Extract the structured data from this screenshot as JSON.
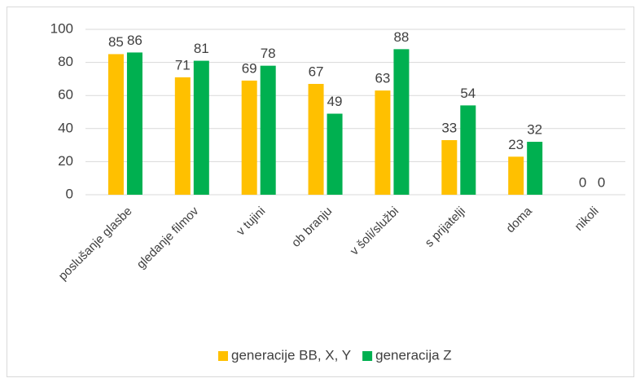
{
  "chart_data": {
    "type": "bar",
    "categories": [
      "poslušanje glasbe",
      "gledanje filmov",
      "v tujini",
      "ob branju",
      "v šoli/službi",
      "s prijatelji",
      "doma",
      "nikoli"
    ],
    "series": [
      {
        "name": "generacije BB, X, Y",
        "color": "#ffc000",
        "values": [
          85,
          71,
          69,
          67,
          63,
          33,
          23,
          0
        ]
      },
      {
        "name": "generacija Z",
        "color": "#00b050",
        "values": [
          86,
          81,
          78,
          49,
          88,
          54,
          32,
          0
        ]
      }
    ],
    "ylim": [
      0,
      100
    ],
    "yticks": [
      0,
      20,
      40,
      60,
      80,
      100
    ],
    "grid": true,
    "legend": "bottom"
  }
}
